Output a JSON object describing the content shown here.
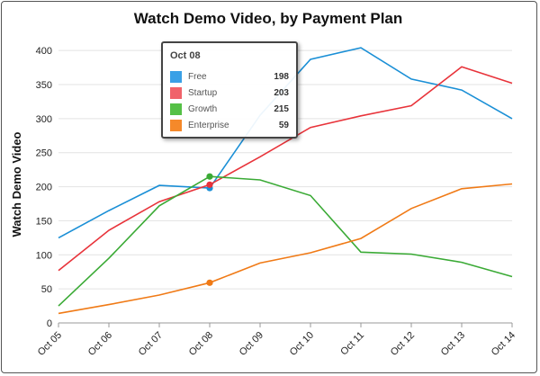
{
  "chart_data": {
    "type": "line",
    "title": "Watch Demo Video, by Payment Plan",
    "xlabel": "",
    "ylabel": "Watch Demo Video",
    "categories": [
      "Oct 05",
      "Oct 06",
      "Oct 07",
      "Oct 08",
      "Oct 09",
      "Oct 10",
      "Oct 11",
      "Oct 12",
      "Oct 13",
      "Oct 14"
    ],
    "ylim": [
      0,
      420
    ],
    "yticks": [
      0,
      50,
      100,
      150,
      200,
      250,
      300,
      350,
      400
    ],
    "grid": true,
    "series": [
      {
        "name": "Free",
        "color": "#1a8fd6",
        "values": [
          125,
          165,
          202,
          198,
          305,
          387,
          404,
          358,
          342,
          300
        ]
      },
      {
        "name": "Startup",
        "color": "#e8333a",
        "values": [
          77,
          136,
          178,
          203,
          244,
          287,
          304,
          319,
          376,
          352
        ]
      },
      {
        "name": "Growth",
        "color": "#3aaa35",
        "values": [
          25,
          95,
          172,
          215,
          210,
          187,
          104,
          101,
          89,
          68
        ]
      },
      {
        "name": "Enterprise",
        "color": "#f07a16",
        "values": [
          14,
          27,
          41,
          59,
          88,
          103,
          124,
          168,
          197,
          204
        ]
      }
    ],
    "highlight_index": 3
  },
  "tooltip": {
    "title": "Oct 08",
    "rows": [
      {
        "name": "Free",
        "value": "198",
        "color": "#3aa0e6"
      },
      {
        "name": "Startup",
        "value": "203",
        "color": "#f0636a"
      },
      {
        "name": "Growth",
        "value": "215",
        "color": "#55c046"
      },
      {
        "name": "Enterprise",
        "value": "59",
        "color": "#f5892a"
      }
    ]
  }
}
